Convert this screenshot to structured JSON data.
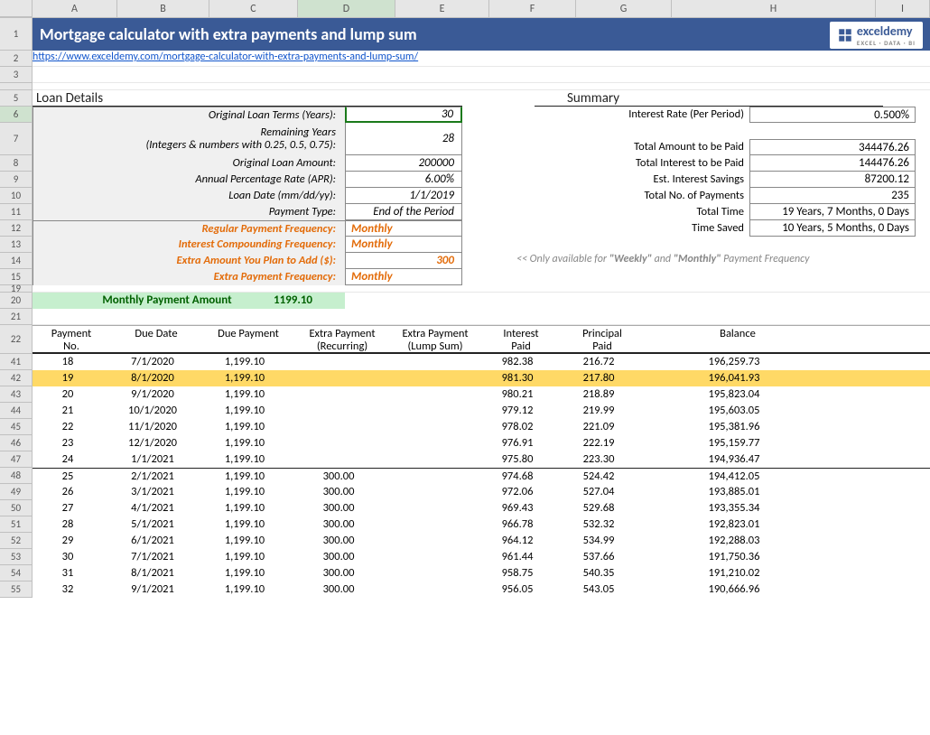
{
  "title": "Mortgage calculator with extra payments and lump sum",
  "logo": {
    "brand": "exceldemy",
    "sub": "EXCEL · DATA · BI"
  },
  "link": "https://www.exceldemy.com/mortgage-calculator-with-extra-payments-and-lump-sum/",
  "columns": [
    "A",
    "B",
    "C",
    "D",
    "E",
    "F",
    "G",
    "H",
    "I"
  ],
  "row_nums_top": [
    "1",
    "2",
    "3",
    "",
    "5",
    "6",
    "7",
    "8",
    "9",
    "10",
    "11",
    "12",
    "13",
    "14",
    "15",
    "19",
    "20",
    "21",
    "22"
  ],
  "row_nums_sched": [
    "41",
    "42",
    "43",
    "44",
    "45",
    "46",
    "47",
    "48",
    "49",
    "50",
    "51",
    "52",
    "53",
    "54",
    "55"
  ],
  "loan_details_header": "Loan Details",
  "loan_details": [
    {
      "label": "Original Loan Terms (Years):",
      "value": "30",
      "selected": true,
      "top": true
    },
    {
      "label": "Remaining Years\n(Integers & numbers with 0.25, 0.5, 0.75):",
      "value": "28",
      "two": true
    },
    {
      "label": "Original Loan Amount:",
      "value": "200000"
    },
    {
      "label": "Annual Percentage Rate (APR):",
      "value": "6.00%"
    },
    {
      "label": "Loan Date (mm/dd/yy):",
      "value": "1/1/2019"
    },
    {
      "label": "Payment Type:",
      "value": "End of the Period"
    },
    {
      "label": "Regular Payment Frequency:",
      "value": "Monthly",
      "orange": true,
      "sep": true
    },
    {
      "label": "Interest Compounding Frequency:",
      "value": "Monthly",
      "orange": true
    },
    {
      "label": "Extra Amount You Plan to Add ($):",
      "value": "300",
      "orange": true,
      "vr": true
    },
    {
      "label": "Extra Payment Frequency:",
      "value": "Monthly",
      "orange": true
    }
  ],
  "monthly_payment": {
    "label": "Monthly Payment Amount",
    "value": "1199.10"
  },
  "summary_header": "Summary",
  "summary": [
    {
      "label": "Interest Rate (Per Period)",
      "value": "0.500%",
      "top": true
    },
    {
      "label": "",
      "value": "",
      "blank": true
    },
    {
      "label": "Total Amount to be Paid",
      "value": "344476.26",
      "top": true
    },
    {
      "label": "Total Interest to be Paid",
      "value": "144476.26"
    },
    {
      "label": "Est. Interest Savings",
      "value": "87200.12"
    },
    {
      "label": "Total No. of Payments",
      "value": "235"
    },
    {
      "label": "Total Time",
      "value": "19 Years, 7 Months, 0 Days"
    },
    {
      "label": "Time Saved",
      "value": "10 Years, 5 Months, 0 Days"
    }
  ],
  "note_prefix": "<< Only available for ",
  "note_w": "\"Weekly\"",
  "note_and": " and ",
  "note_m": "\"Monthly\"",
  "note_suffix": " Payment Frequency",
  "sched_headers": [
    "Payment\nNo.",
    "Due Date",
    "Due Payment",
    "Extra Payment\n(Recurring)",
    "Extra Payment\n(Lump Sum)",
    "Interest\nPaid",
    "Principal\nPaid",
    "Balance"
  ],
  "schedule": [
    {
      "no": "18",
      "date": "7/1/2020",
      "due": "1,199.10",
      "ep": "",
      "ls": "",
      "int": "982.38",
      "prin": "216.72",
      "bal": "196,259.73"
    },
    {
      "no": "19",
      "date": "8/1/2020",
      "due": "1,199.10",
      "ep": "",
      "ls": "",
      "int": "981.30",
      "prin": "217.80",
      "bal": "196,041.93",
      "hl": true
    },
    {
      "no": "20",
      "date": "9/1/2020",
      "due": "1,199.10",
      "ep": "",
      "ls": "",
      "int": "980.21",
      "prin": "218.89",
      "bal": "195,823.04"
    },
    {
      "no": "21",
      "date": "10/1/2020",
      "due": "1,199.10",
      "ep": "",
      "ls": "",
      "int": "979.12",
      "prin": "219.99",
      "bal": "195,603.05"
    },
    {
      "no": "22",
      "date": "11/1/2020",
      "due": "1,199.10",
      "ep": "",
      "ls": "",
      "int": "978.02",
      "prin": "221.09",
      "bal": "195,381.96"
    },
    {
      "no": "23",
      "date": "12/1/2020",
      "due": "1,199.10",
      "ep": "",
      "ls": "",
      "int": "976.91",
      "prin": "222.19",
      "bal": "195,159.77"
    },
    {
      "no": "24",
      "date": "1/1/2021",
      "due": "1,199.10",
      "ep": "",
      "ls": "",
      "int": "975.80",
      "prin": "223.30",
      "bal": "194,936.47"
    },
    {
      "no": "25",
      "date": "2/1/2021",
      "due": "1,199.10",
      "ep": "300.00",
      "ls": "",
      "int": "974.68",
      "prin": "524.42",
      "bal": "194,412.05",
      "sep": true
    },
    {
      "no": "26",
      "date": "3/1/2021",
      "due": "1,199.10",
      "ep": "300.00",
      "ls": "",
      "int": "972.06",
      "prin": "527.04",
      "bal": "193,885.01"
    },
    {
      "no": "27",
      "date": "4/1/2021",
      "due": "1,199.10",
      "ep": "300.00",
      "ls": "",
      "int": "969.43",
      "prin": "529.68",
      "bal": "193,355.34"
    },
    {
      "no": "28",
      "date": "5/1/2021",
      "due": "1,199.10",
      "ep": "300.00",
      "ls": "",
      "int": "966.78",
      "prin": "532.32",
      "bal": "192,823.01"
    },
    {
      "no": "29",
      "date": "6/1/2021",
      "due": "1,199.10",
      "ep": "300.00",
      "ls": "",
      "int": "964.12",
      "prin": "534.99",
      "bal": "192,288.03"
    },
    {
      "no": "30",
      "date": "7/1/2021",
      "due": "1,199.10",
      "ep": "300.00",
      "ls": "",
      "int": "961.44",
      "prin": "537.66",
      "bal": "191,750.36"
    },
    {
      "no": "31",
      "date": "8/1/2021",
      "due": "1,199.10",
      "ep": "300.00",
      "ls": "",
      "int": "958.75",
      "prin": "540.35",
      "bal": "191,210.02"
    },
    {
      "no": "32",
      "date": "9/1/2021",
      "due": "1,199.10",
      "ep": "300.00",
      "ls": "",
      "int": "956.05",
      "prin": "543.05",
      "bal": "190,666.96"
    }
  ],
  "selected_col": "D",
  "selected_row": "6"
}
